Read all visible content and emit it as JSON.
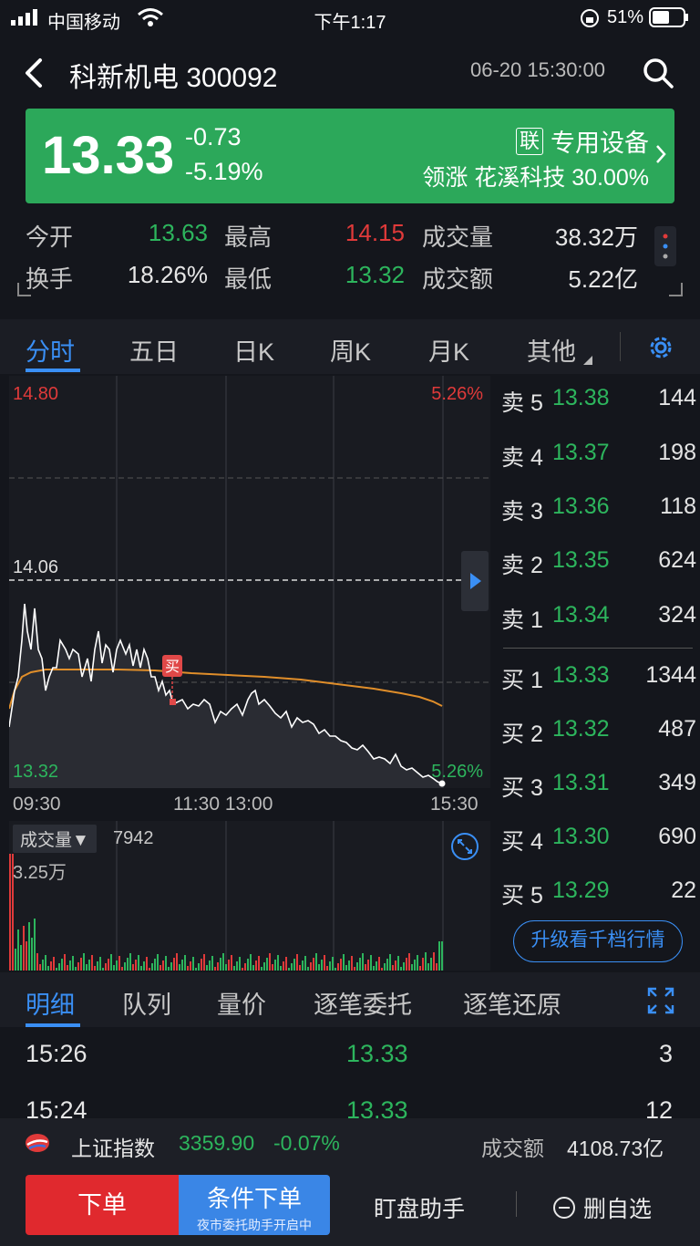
{
  "status": {
    "carrier": "中国移动",
    "time": "下午1:17",
    "battery": "51%"
  },
  "header": {
    "title": "科新机电 300092",
    "datetime": "06-20 15:30:00"
  },
  "quote": {
    "price": "13.33",
    "change": "-0.73",
    "change_pct": "-5.19%",
    "sector_badge": "联",
    "sector": "专用设备",
    "leader": "领涨 花溪科技 30.00%"
  },
  "stats": {
    "open_label": "今开",
    "open": "13.63",
    "high_label": "最高",
    "high": "14.15",
    "vol_label": "成交量",
    "vol": "38.32万",
    "turnover_label": "换手",
    "turnover": "18.26%",
    "low_label": "最低",
    "low": "13.32",
    "amt_label": "成交额",
    "amt": "5.22亿"
  },
  "tabs": [
    "分时",
    "五日",
    "日K",
    "周K",
    "月K",
    "其他"
  ],
  "chart": {
    "y_max": "14.80",
    "y_max_pct": "5.26%",
    "y_mid": "14.06",
    "y_min": "13.32",
    "y_min_pct": "5.26%",
    "x_start": "09:30",
    "x_mid": "11:30 13:00",
    "x_end": "15:30",
    "buy_marker": "买",
    "vol_selector": "成交量▼",
    "vol_value": "7942",
    "vol_max": "3.25万"
  },
  "order_book": {
    "asks": [
      {
        "label": "卖 5",
        "price": "13.38",
        "vol": "144"
      },
      {
        "label": "卖 4",
        "price": "13.37",
        "vol": "198"
      },
      {
        "label": "卖 3",
        "price": "13.36",
        "vol": "118"
      },
      {
        "label": "卖 2",
        "price": "13.35",
        "vol": "624"
      },
      {
        "label": "卖 1",
        "price": "13.34",
        "vol": "324"
      }
    ],
    "bids": [
      {
        "label": "买 1",
        "price": "13.33",
        "vol": "1344"
      },
      {
        "label": "买 2",
        "price": "13.32",
        "vol": "487"
      },
      {
        "label": "买 3",
        "price": "13.31",
        "vol": "349"
      },
      {
        "label": "买 4",
        "price": "13.30",
        "vol": "690"
      },
      {
        "label": "买 5",
        "price": "13.29",
        "vol": "22"
      }
    ],
    "upgrade": "升级看千档行情"
  },
  "detail_tabs": [
    "明细",
    "队列",
    "量价",
    "逐笔委托",
    "逐笔还原"
  ],
  "trades": [
    {
      "time": "15:26",
      "price": "13.33",
      "vol": "3"
    },
    {
      "time": "15:24",
      "price": "13.33",
      "vol": "12"
    }
  ],
  "index_bar": {
    "name": "上证指数",
    "value": "3359.90",
    "change": "-0.07%",
    "amt_label": "成交额",
    "amt": "4108.73亿"
  },
  "bottom": {
    "order": "下单",
    "cond": "条件下单",
    "cond_sub": "夜市委托助手开启中",
    "helper": "盯盘助手",
    "delfav": "删自选"
  },
  "colors": {
    "up": "#e03a3a",
    "down": "#2db55d",
    "accent": "#3a8ff5",
    "banner": "#2ca85a"
  }
}
